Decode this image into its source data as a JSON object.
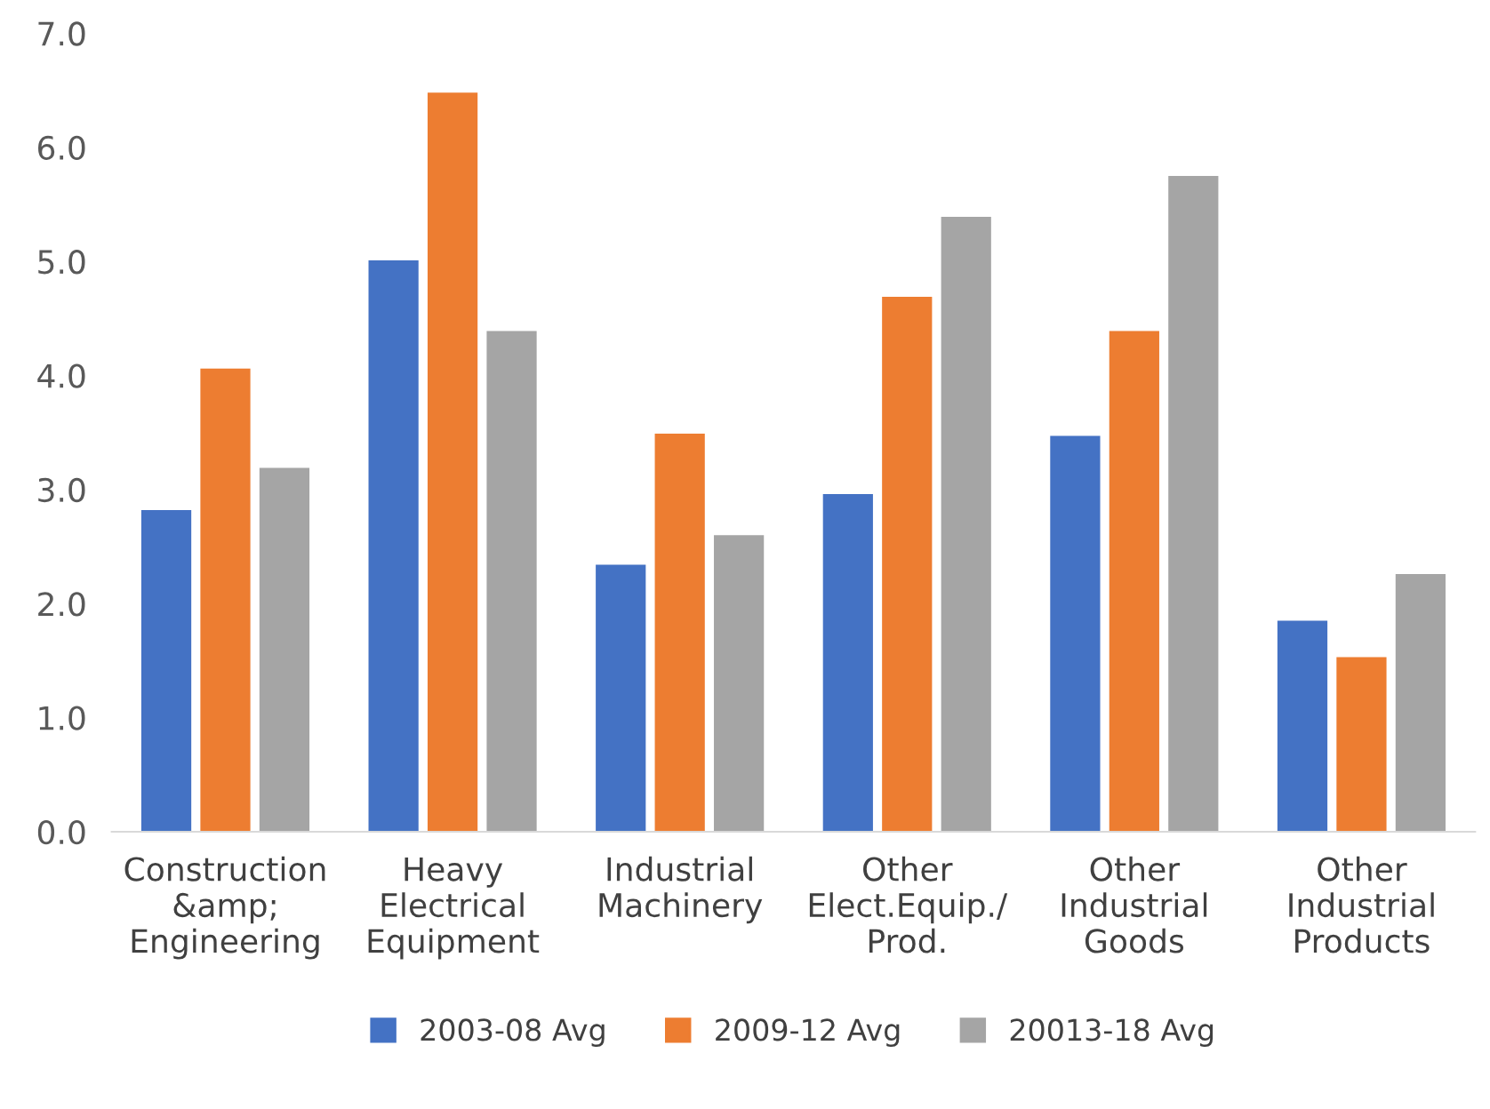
{
  "chart_data": {
    "type": "bar",
    "categories": [
      "Construction\n&amp;\nEngineering",
      "Heavy\nElectrical\nEquipment",
      "Industrial\nMachinery",
      "Other\nElect.Equip./\nProd.",
      "Other\nIndustrial\nGoods",
      "Other\nIndustrial\nProducts"
    ],
    "series": [
      {
        "name": "2003-08 Avg",
        "color": "#4472c4",
        "values": [
          2.82,
          5.01,
          2.34,
          2.96,
          3.47,
          1.85
        ]
      },
      {
        "name": "2009-12 Avg",
        "color": "#ed7d31",
        "values": [
          4.06,
          6.48,
          3.49,
          4.69,
          4.39,
          1.53
        ]
      },
      {
        "name": "20013-18 Avg",
        "color": "#a5a5a5",
        "values": [
          3.19,
          4.39,
          2.6,
          5.39,
          5.75,
          2.26
        ]
      }
    ],
    "ylim": [
      0,
      7
    ],
    "yticks": [
      {
        "value": 0,
        "label": "0.0"
      },
      {
        "value": 1,
        "label": "1.0"
      },
      {
        "value": 2,
        "label": "2.0"
      },
      {
        "value": 3,
        "label": "3.0"
      },
      {
        "value": 4,
        "label": "4.0"
      },
      {
        "value": 5,
        "label": "5.0"
      },
      {
        "value": 6,
        "label": "6.0"
      },
      {
        "value": 7,
        "label": "7.0"
      }
    ],
    "grid": false,
    "legend": "bottom"
  }
}
